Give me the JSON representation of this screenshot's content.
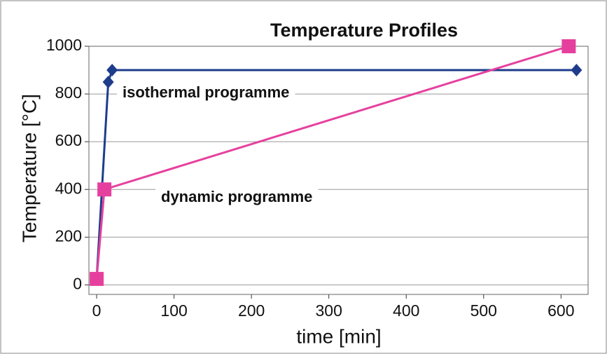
{
  "chart_data": {
    "type": "line",
    "title": "Temperature Profiles",
    "x_label": "time [min]",
    "y_label": "Temperature [°C]",
    "xlim": [
      -10,
      635
    ],
    "ylim": [
      -40,
      1000
    ],
    "xticks": [
      0,
      100,
      200,
      300,
      400,
      500,
      600
    ],
    "yticks": [
      0,
      200,
      400,
      600,
      800,
      1000
    ],
    "grid": true,
    "series": [
      {
        "name": "isothermal programme",
        "color": "#1f3c8c",
        "marker": "diamond",
        "x": [
          0,
          15,
          20,
          620
        ],
        "values": [
          25,
          850,
          900,
          900
        ]
      },
      {
        "name": "dynamic programme",
        "color": "#e6409e",
        "marker": "square",
        "x": [
          0,
          10,
          610
        ],
        "values": [
          25,
          400,
          1000
        ]
      }
    ]
  }
}
